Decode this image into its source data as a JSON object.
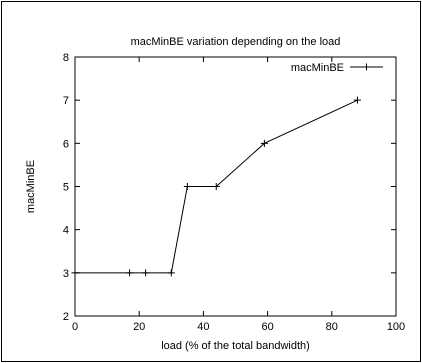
{
  "chart_data": {
    "type": "line",
    "title": "macMinBE variation depending on the load",
    "xlabel": "load (% of the total bandwidth)",
    "ylabel": "macMinBE",
    "xlim": [
      0,
      100
    ],
    "ylim": [
      2,
      8
    ],
    "x_ticks": [
      0,
      20,
      40,
      60,
      80,
      100
    ],
    "y_ticks": [
      2,
      3,
      4,
      5,
      6,
      7,
      8
    ],
    "grid": false,
    "legend_position": "top-right",
    "series": [
      {
        "name": "macMinBE",
        "marker": "+",
        "color": "#000000",
        "x": [
          0,
          17,
          22,
          30,
          35,
          44,
          59,
          88
        ],
        "y": [
          3,
          3,
          3,
          3,
          5,
          5,
          6,
          7
        ]
      }
    ]
  }
}
